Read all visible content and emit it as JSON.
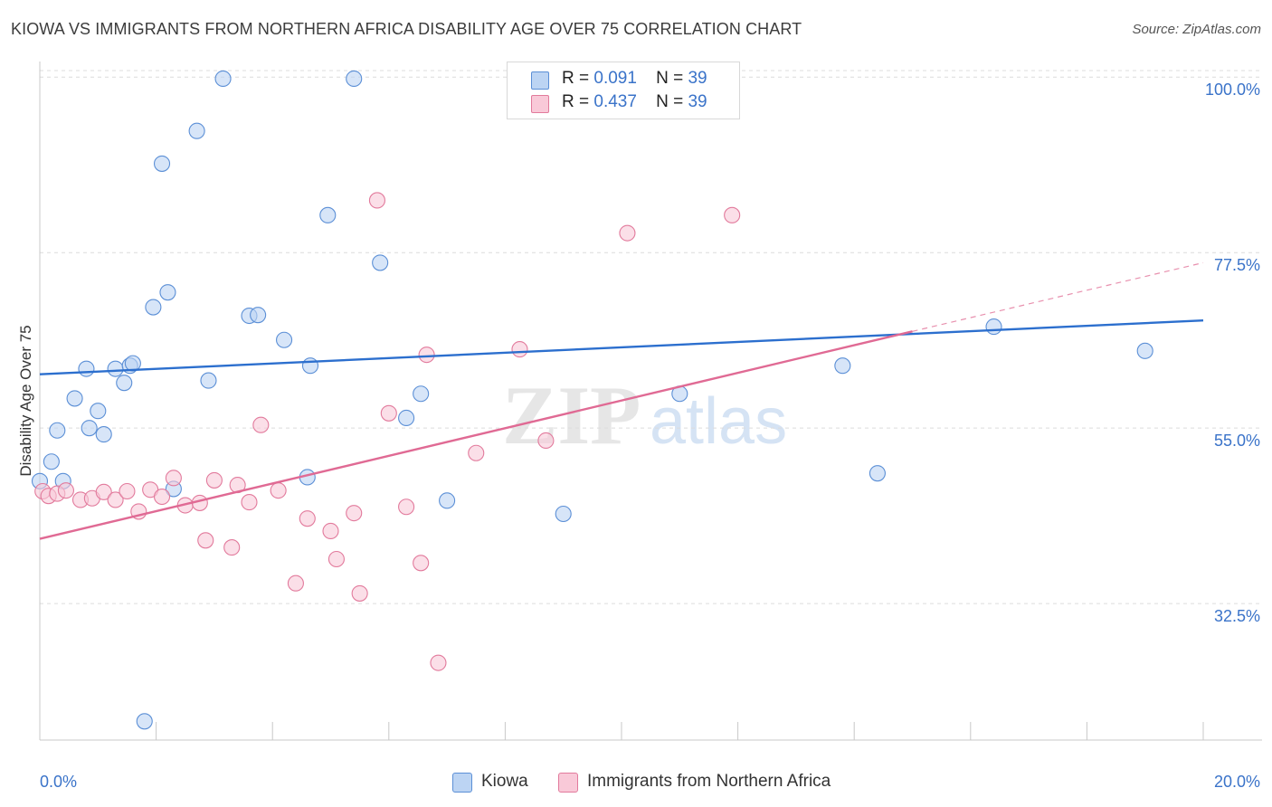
{
  "title": "KIOWA VS IMMIGRANTS FROM NORTHERN AFRICA DISABILITY AGE OVER 75 CORRELATION CHART",
  "source": "Source: ZipAtlas.com",
  "watermark": {
    "zip": "ZIP",
    "atlas": "atlas"
  },
  "legend": [
    {
      "r_label": "R =",
      "r_value": "0.091",
      "n_label": "N =",
      "n_value": "39",
      "color": "#5b8fd6",
      "fill": "#bcd4f3"
    },
    {
      "r_label": "R =",
      "r_value": "0.437",
      "n_label": "N =",
      "n_value": "39",
      "color": "#e27a9c",
      "fill": "#f9c9d8"
    }
  ],
  "bottom_legend": [
    "Kiowa",
    "Immigrants from Northern Africa"
  ],
  "chart_data": {
    "type": "scatter",
    "title": "KIOWA VS IMMIGRANTS FROM NORTHERN AFRICA DISABILITY AGE OVER 75 CORRELATION CHART",
    "xlabel": "",
    "ylabel": "Disability Age Over 75",
    "xlim": [
      0,
      20
    ],
    "ylim": [
      15,
      102
    ],
    "x_tick_labels": [
      "0.0%",
      "20.0%"
    ],
    "y_ticks": [
      32.5,
      55.0,
      77.5,
      100.0
    ],
    "y_tick_labels": [
      "32.5%",
      "55.0%",
      "77.5%",
      "100.0%"
    ],
    "grid": true,
    "legend_position": "top-center",
    "series": [
      {
        "name": "Kiowa",
        "color": "#5b8fd6",
        "fill": "#bcd4f3",
        "trend": {
          "x": [
            0,
            20
          ],
          "y": [
            61.9,
            68.8
          ]
        },
        "points": [
          [
            0.0,
            48.2
          ],
          [
            0.2,
            50.7
          ],
          [
            0.3,
            54.7
          ],
          [
            0.4,
            48.2
          ],
          [
            0.6,
            58.8
          ],
          [
            0.8,
            62.6
          ],
          [
            0.85,
            55.0
          ],
          [
            1.0,
            57.2
          ],
          [
            1.1,
            54.2
          ],
          [
            1.3,
            62.6
          ],
          [
            1.45,
            60.8
          ],
          [
            1.55,
            63.0
          ],
          [
            1.6,
            63.3
          ],
          [
            1.8,
            17.4
          ],
          [
            1.95,
            70.5
          ],
          [
            2.1,
            88.9
          ],
          [
            2.2,
            72.4
          ],
          [
            2.3,
            47.2
          ],
          [
            2.7,
            93.1
          ],
          [
            2.9,
            61.1
          ],
          [
            3.15,
            99.8
          ],
          [
            3.6,
            69.4
          ],
          [
            3.75,
            69.5
          ],
          [
            4.2,
            66.3
          ],
          [
            4.6,
            48.7
          ],
          [
            4.65,
            63.0
          ],
          [
            4.95,
            82.3
          ],
          [
            5.4,
            99.8
          ],
          [
            5.85,
            76.2
          ],
          [
            6.3,
            56.3
          ],
          [
            6.55,
            59.4
          ],
          [
            7.0,
            45.7
          ],
          [
            9.0,
            44.0
          ],
          [
            9.05,
            99.8
          ],
          [
            11.0,
            59.4
          ],
          [
            13.8,
            63.0
          ],
          [
            14.4,
            49.2
          ],
          [
            16.4,
            68.0
          ],
          [
            19.0,
            64.9
          ]
        ]
      },
      {
        "name": "Immigrants from Northern Africa",
        "color": "#e27a9c",
        "fill": "#f9c9d8",
        "trend": {
          "x": [
            0,
            15
          ],
          "y": [
            40.8,
            67.4
          ]
        },
        "trend_dashed": {
          "x": [
            15,
            20
          ],
          "y": [
            67.4,
            76.2
          ]
        },
        "points": [
          [
            0.05,
            46.9
          ],
          [
            0.15,
            46.3
          ],
          [
            0.3,
            46.6
          ],
          [
            0.45,
            47.0
          ],
          [
            0.7,
            45.8
          ],
          [
            0.9,
            46.0
          ],
          [
            1.1,
            46.8
          ],
          [
            1.3,
            45.8
          ],
          [
            1.5,
            46.9
          ],
          [
            1.7,
            44.3
          ],
          [
            1.9,
            47.1
          ],
          [
            2.1,
            46.2
          ],
          [
            2.3,
            48.6
          ],
          [
            2.5,
            45.1
          ],
          [
            2.75,
            45.4
          ],
          [
            2.85,
            40.6
          ],
          [
            3.0,
            48.3
          ],
          [
            3.3,
            39.7
          ],
          [
            3.4,
            47.7
          ],
          [
            3.6,
            45.5
          ],
          [
            3.8,
            55.4
          ],
          [
            4.1,
            47.0
          ],
          [
            4.4,
            35.1
          ],
          [
            4.6,
            43.4
          ],
          [
            5.0,
            41.8
          ],
          [
            5.1,
            38.2
          ],
          [
            5.4,
            44.1
          ],
          [
            5.5,
            33.8
          ],
          [
            5.8,
            84.2
          ],
          [
            6.0,
            56.9
          ],
          [
            6.3,
            44.9
          ],
          [
            6.55,
            37.7
          ],
          [
            6.65,
            64.4
          ],
          [
            6.85,
            24.9
          ],
          [
            7.5,
            51.8
          ],
          [
            8.25,
            65.1
          ],
          [
            8.7,
            53.4
          ],
          [
            10.1,
            80.0
          ],
          [
            11.9,
            82.3
          ]
        ]
      }
    ]
  }
}
